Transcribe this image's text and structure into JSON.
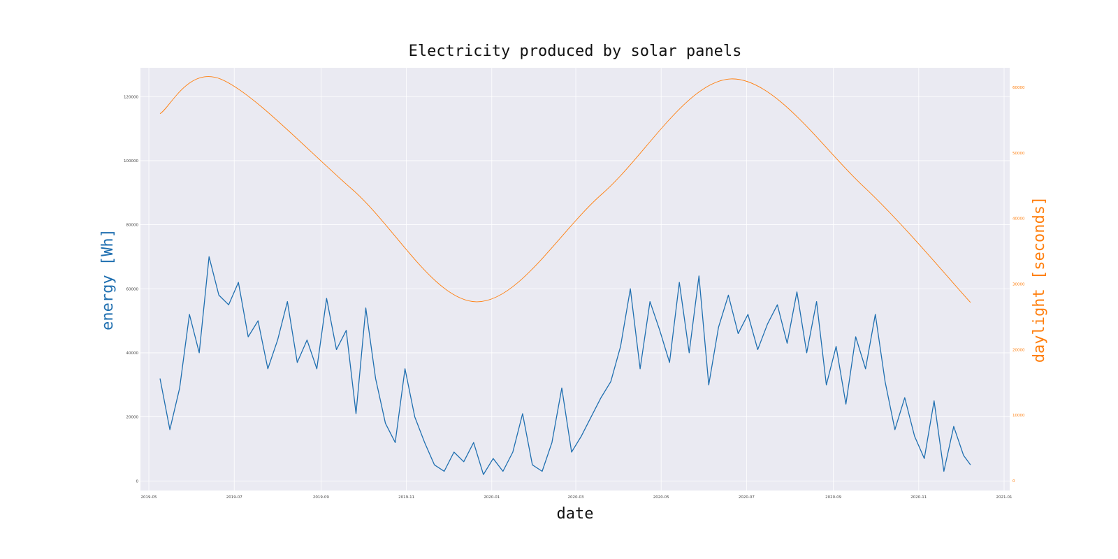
{
  "colors": {
    "energy": "#1f6fb0",
    "daylight": "#ff7f0e",
    "plot_bg": "#eaeaf2",
    "tick_text": "#444444"
  },
  "chart_data": {
    "type": "line",
    "title": "Electricity produced by solar panels",
    "xlabel": "date",
    "ylabel": "energy [Wh]",
    "ylabel_right": "daylight [seconds]",
    "grid": true,
    "xlim": [
      "2019-04-25",
      "2021-01-05"
    ],
    "ylim": [
      -3000,
      129000
    ],
    "ylim_right": [
      -1500,
      63000
    ],
    "x_ticks": [
      "2019-05",
      "2019-07",
      "2019-09",
      "2019-11",
      "2020-01",
      "2020-03",
      "2020-05",
      "2020-07",
      "2020-09",
      "2020-11",
      "2021-01"
    ],
    "y_ticks": [
      0,
      20000,
      40000,
      60000,
      80000,
      100000,
      120000
    ],
    "y_ticks_right": [
      0,
      10000,
      20000,
      30000,
      40000,
      50000,
      60000
    ],
    "series": [
      {
        "axis": "left",
        "x": [
          "2019-05-09",
          "2019-05-16",
          "2019-05-23",
          "2019-05-30",
          "2019-06-06",
          "2019-06-13",
          "2019-06-20",
          "2019-06-27",
          "2019-07-04",
          "2019-07-11",
          "2019-07-18",
          "2019-07-25",
          "2019-08-01",
          "2019-08-08",
          "2019-08-15",
          "2019-08-22",
          "2019-08-29",
          "2019-09-05",
          "2019-09-12",
          "2019-09-19",
          "2019-09-26",
          "2019-10-03",
          "2019-10-10",
          "2019-10-17",
          "2019-10-24",
          "2019-10-31",
          "2019-11-07",
          "2019-11-14",
          "2019-11-21",
          "2019-11-28",
          "2019-12-05",
          "2019-12-12",
          "2019-12-19",
          "2019-12-26",
          "2020-01-02",
          "2020-01-09",
          "2020-01-16",
          "2020-01-23",
          "2020-01-30",
          "2020-02-06",
          "2020-02-13",
          "2020-02-20",
          "2020-02-27",
          "2020-03-05",
          "2020-03-12",
          "2020-03-19",
          "2020-03-26",
          "2020-04-02",
          "2020-04-09",
          "2020-04-16",
          "2020-04-23",
          "2020-04-30",
          "2020-05-07",
          "2020-05-14",
          "2020-05-21",
          "2020-05-28",
          "2020-06-04",
          "2020-06-11",
          "2020-06-18",
          "2020-06-25",
          "2020-07-02",
          "2020-07-09",
          "2020-07-16",
          "2020-07-23",
          "2020-07-30",
          "2020-08-06",
          "2020-08-13",
          "2020-08-20",
          "2020-08-27",
          "2020-09-03",
          "2020-09-10",
          "2020-09-17",
          "2020-09-24",
          "2020-10-01",
          "2020-10-08",
          "2020-10-15",
          "2020-10-22",
          "2020-10-29",
          "2020-11-05",
          "2020-11-12",
          "2020-11-19",
          "2020-11-26",
          "2020-12-03",
          "2020-12-08"
        ],
        "values": [
          32000,
          16000,
          29000,
          52000,
          40000,
          70000,
          58000,
          55000,
          62000,
          45000,
          50000,
          35000,
          44000,
          56000,
          37000,
          44000,
          35000,
          57000,
          41000,
          47000,
          21000,
          54000,
          32000,
          18000,
          12000,
          35000,
          20000,
          12000,
          5000,
          3000,
          9000,
          6000,
          12000,
          2000,
          7000,
          3000,
          9000,
          21000,
          5000,
          3000,
          12000,
          29000,
          9000,
          14000,
          20000,
          26000,
          31000,
          42000,
          60000,
          35000,
          56000,
          47000,
          37000,
          62000,
          40000,
          64000,
          30000,
          48000,
          58000,
          46000,
          52000,
          41000,
          49000,
          55000,
          43000,
          59000,
          40000,
          56000,
          30000,
          42000,
          24000,
          45000,
          35000,
          52000,
          31000,
          16000,
          26000,
          14000,
          7000,
          25000,
          3000,
          17000,
          8000,
          5000
        ]
      },
      {
        "axis": "right",
        "x": [
          "2019-05-09",
          "2019-06-21",
          "2019-09-23",
          "2019-12-21",
          "2020-03-20",
          "2020-06-20",
          "2020-09-22",
          "2020-12-08"
        ],
        "values": [
          56000,
          61300,
          44500,
          27300,
          43800,
          61300,
          45000,
          27200
        ]
      }
    ]
  }
}
